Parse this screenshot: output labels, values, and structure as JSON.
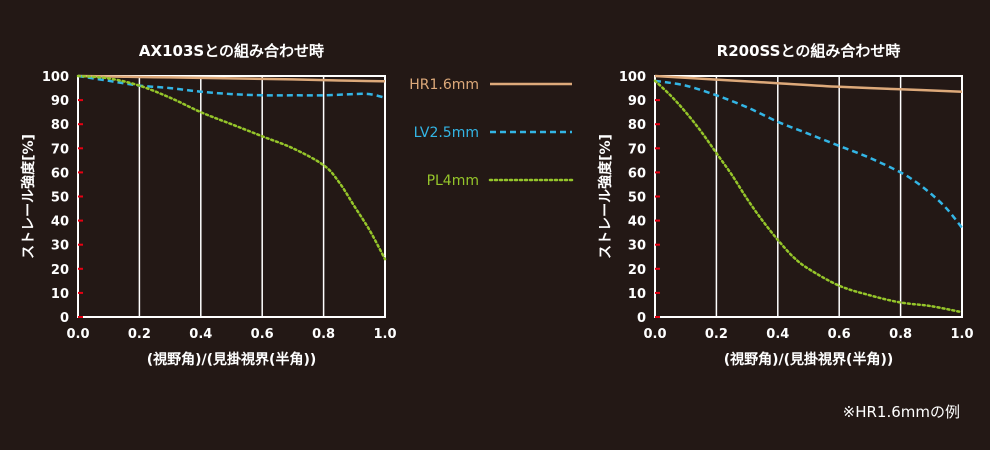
{
  "legend": {
    "title": "",
    "items": [
      {
        "label": "HR1.6mm",
        "color": "#dda97a",
        "dash": "solid"
      },
      {
        "label": "LV2.5mm",
        "color": "#33b5e5",
        "dash": "dashed"
      },
      {
        "label": "PL4mm",
        "color": "#95c52a",
        "dash": "dotted"
      }
    ]
  },
  "footnote": "※HR1.6mmの例",
  "colors": {
    "background": "#231815",
    "plot_background": "#ffffff",
    "grid": "#ffffff",
    "tick_mark_red": "#e60012"
  },
  "chart_data": [
    {
      "type": "line",
      "title": "AX103Sとの組み合わせ時",
      "xlabel": "(視野角)/(見掛視界(半角))",
      "ylabel": "ストレール強度[%]",
      "xlim": [
        0,
        1.0
      ],
      "ylim": [
        0,
        100
      ],
      "xticks": [
        "0.0",
        "0.2",
        "0.4",
        "0.6",
        "0.8",
        "1.0"
      ],
      "yticks": [
        "0",
        "10",
        "20",
        "30",
        "40",
        "50",
        "60",
        "70",
        "80",
        "90",
        "100"
      ],
      "series": [
        {
          "name": "HR1.6mm",
          "x": [
            0,
            0.1,
            0.2,
            0.3,
            0.4,
            0.5,
            0.6,
            0.7,
            0.8,
            0.9,
            1.0
          ],
          "y": [
            100,
            99.8,
            99.6,
            99.4,
            99.2,
            99.0,
            98.8,
            98.6,
            98.3,
            98.0,
            97.8
          ]
        },
        {
          "name": "LV2.5mm",
          "x": [
            0,
            0.1,
            0.2,
            0.3,
            0.4,
            0.5,
            0.6,
            0.7,
            0.8,
            0.9,
            0.95,
            1.0
          ],
          "y": [
            100,
            98,
            96,
            95,
            93.5,
            92.5,
            92,
            92,
            92,
            92.5,
            92.5,
            91
          ]
        },
        {
          "name": "PL4mm",
          "x": [
            0,
            0.1,
            0.2,
            0.3,
            0.4,
            0.5,
            0.6,
            0.7,
            0.8,
            0.85,
            0.9,
            0.95,
            1.0
          ],
          "y": [
            100,
            99,
            96,
            91,
            85,
            80,
            75,
            70,
            63,
            56,
            46,
            36,
            24
          ]
        }
      ]
    },
    {
      "type": "line",
      "title": "R200SSとの組み合わせ時",
      "xlabel": "(視野角)/(見掛視界(半角))",
      "ylabel": "ストレール強度[%]",
      "xlim": [
        0,
        1.0
      ],
      "ylim": [
        0,
        100
      ],
      "xticks": [
        "0.0",
        "0.2",
        "0.4",
        "0.6",
        "0.8",
        "1.0"
      ],
      "yticks": [
        "0",
        "10",
        "20",
        "30",
        "40",
        "50",
        "60",
        "70",
        "80",
        "90",
        "100"
      ],
      "series": [
        {
          "name": "HR1.6mm",
          "x": [
            0,
            0.2,
            0.4,
            0.6,
            0.8,
            1.0
          ],
          "y": [
            100,
            98.5,
            97,
            95.5,
            94.5,
            93.5
          ]
        },
        {
          "name": "LV2.5mm",
          "x": [
            0,
            0.1,
            0.2,
            0.3,
            0.4,
            0.5,
            0.6,
            0.7,
            0.8,
            0.85,
            0.9,
            0.95,
            1.0
          ],
          "y": [
            98,
            96,
            92,
            87,
            81,
            76,
            71,
            66,
            60,
            56,
            51,
            45,
            37
          ]
        },
        {
          "name": "PL4mm",
          "x": [
            0,
            0.05,
            0.1,
            0.15,
            0.2,
            0.25,
            0.3,
            0.35,
            0.4,
            0.45,
            0.5,
            0.6,
            0.7,
            0.8,
            0.9,
            1.0
          ],
          "y": [
            98,
            92,
            85,
            77,
            68,
            59,
            49,
            40,
            32,
            25,
            20,
            13,
            9,
            6,
            4.5,
            2
          ]
        }
      ]
    }
  ]
}
